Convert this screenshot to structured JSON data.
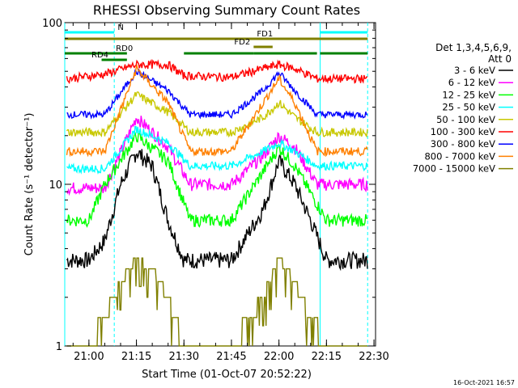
{
  "chart_data": {
    "type": "line",
    "title": "RHESSI Observing Summary Count Rates",
    "xlabel": "Start Time (01-Oct-07 20:52:22)",
    "ylabel": "Count Rate (s⁻¹ detector⁻¹)",
    "yscale": "log",
    "ylim": [
      1,
      100
    ],
    "xlim": [
      "20:52:22",
      "22:30:30"
    ],
    "x_ticks": [
      "21:00",
      "21:15",
      "21:30",
      "21:45",
      "22:00",
      "22:15",
      "22:30"
    ],
    "y_ticks": [
      "1",
      "10",
      "100"
    ],
    "grid": false,
    "legend_header": [
      "Det 1,3,4,5,6,9,",
      "Att 0"
    ],
    "legend_position": "right",
    "footer_timestamp": "16-Oct-2021 16:57",
    "series": [
      {
        "name": "3 - 6 keV",
        "color": "#000000",
        "x": [
          "20:53",
          "21:00",
          "21:05",
          "21:10",
          "21:15",
          "21:20",
          "21:25",
          "21:30",
          "21:35",
          "21:45",
          "21:55",
          "22:00",
          "22:05",
          "22:10",
          "22:15",
          "22:28"
        ],
        "y": [
          3.4,
          3.4,
          4.5,
          10,
          16,
          13,
          6,
          3.4,
          3.4,
          3.4,
          7,
          14,
          10,
          6,
          3.4,
          3.4
        ]
      },
      {
        "name": "6 - 12 keV",
        "color": "#ff00ff",
        "x": [
          "20:53",
          "21:05",
          "21:15",
          "21:25",
          "21:32",
          "21:45",
          "21:55",
          "22:00",
          "22:05",
          "22:12",
          "22:28"
        ],
        "y": [
          9.5,
          9.5,
          26,
          17,
          10,
          10,
          15,
          20,
          17,
          10,
          10
        ]
      },
      {
        "name": "12 - 25 keV",
        "color": "#00ff00",
        "x": [
          "20:53",
          "21:00",
          "21:05",
          "21:15",
          "21:25",
          "21:32",
          "21:45",
          "21:55",
          "22:00",
          "22:05",
          "22:15",
          "22:28"
        ],
        "y": [
          6,
          6,
          10,
          20,
          14,
          6,
          6,
          12,
          17,
          13,
          6,
          6
        ]
      },
      {
        "name": "25 - 50 keV",
        "color": "#00ffff",
        "x": [
          "20:53",
          "21:05",
          "21:15",
          "21:25",
          "21:32",
          "21:45",
          "21:55",
          "22:00",
          "22:05",
          "22:12",
          "22:28"
        ],
        "y": [
          12.5,
          12.5,
          22,
          18,
          13,
          13,
          16,
          18,
          16,
          13,
          13
        ]
      },
      {
        "name": "50 - 100 keV",
        "color": "#c8c800",
        "x": [
          "20:53",
          "21:05",
          "21:15",
          "21:25",
          "21:32",
          "21:45",
          "21:55",
          "22:00",
          "22:05",
          "22:12",
          "22:28"
        ],
        "y": [
          21,
          21,
          36,
          28,
          21,
          21,
          26,
          32,
          26,
          21,
          21
        ]
      },
      {
        "name": "100 - 300 keV",
        "color": "#ff0000",
        "x": [
          "20:53",
          "21:05",
          "21:15",
          "21:25",
          "21:30",
          "21:45",
          "21:55",
          "22:00",
          "22:05",
          "22:12",
          "22:28"
        ],
        "y": [
          45,
          48,
          55,
          55,
          47,
          46,
          52,
          55,
          52,
          45,
          45
        ]
      },
      {
        "name": "300 - 800 keV",
        "color": "#0000ff",
        "x": [
          "20:53",
          "21:05",
          "21:15",
          "21:25",
          "21:32",
          "21:45",
          "21:55",
          "22:00",
          "22:05",
          "22:12",
          "22:28"
        ],
        "y": [
          27,
          27,
          50,
          38,
          27,
          27,
          38,
          49,
          38,
          27,
          27
        ]
      },
      {
        "name": "800 - 7000 keV",
        "color": "#ff8000",
        "x": [
          "20:53",
          "21:05",
          "21:15",
          "21:25",
          "21:32",
          "21:45",
          "21:55",
          "22:00",
          "22:05",
          "22:12",
          "22:28"
        ],
        "y": [
          16,
          16,
          52,
          32,
          16,
          16,
          32,
          45,
          32,
          16,
          16
        ]
      },
      {
        "name": "7000 - 15000 keV",
        "color": "#808000",
        "x": [
          "20:53",
          "21:00",
          "21:05",
          "21:10",
          "21:15",
          "21:20",
          "21:25",
          "21:30",
          "21:35",
          "21:45",
          "21:55",
          "22:00",
          "22:05",
          "22:10",
          "22:15",
          "22:28"
        ],
        "y": [
          1,
          1,
          1.5,
          2.5,
          3.5,
          3,
          2,
          1,
          1,
          1,
          2,
          3.5,
          2.5,
          1.5,
          1,
          1
        ]
      }
    ],
    "flag_bars": [
      {
        "label": "N",
        "color": "#00ffff",
        "segments": [
          [
            "20:52:22",
            "21:08"
          ],
          [
            "22:13",
            "22:28"
          ]
        ],
        "level": 1
      },
      {
        "label": "FD1",
        "color": "#808000",
        "segments": [
          [
            "20:52:22",
            "22:28"
          ]
        ],
        "level": 2
      },
      {
        "label": "FD2",
        "color": "#808000",
        "segments": [
          [
            "21:52",
            "21:58"
          ]
        ],
        "level": 3
      },
      {
        "label": "RD0",
        "color": "#008000",
        "segments": [
          [
            "20:52:22",
            "21:12"
          ],
          [
            "21:30",
            "21:52"
          ],
          [
            "21:52",
            "22:12"
          ],
          [
            "22:13",
            "22:28"
          ]
        ],
        "level": 4
      },
      {
        "label": "RD4",
        "color": "#008000",
        "segments": [
          [
            "21:04",
            "21:12"
          ]
        ],
        "level": 5
      }
    ],
    "night_boundaries": [
      "20:52:22",
      "21:08",
      "22:13",
      "22:28"
    ]
  }
}
